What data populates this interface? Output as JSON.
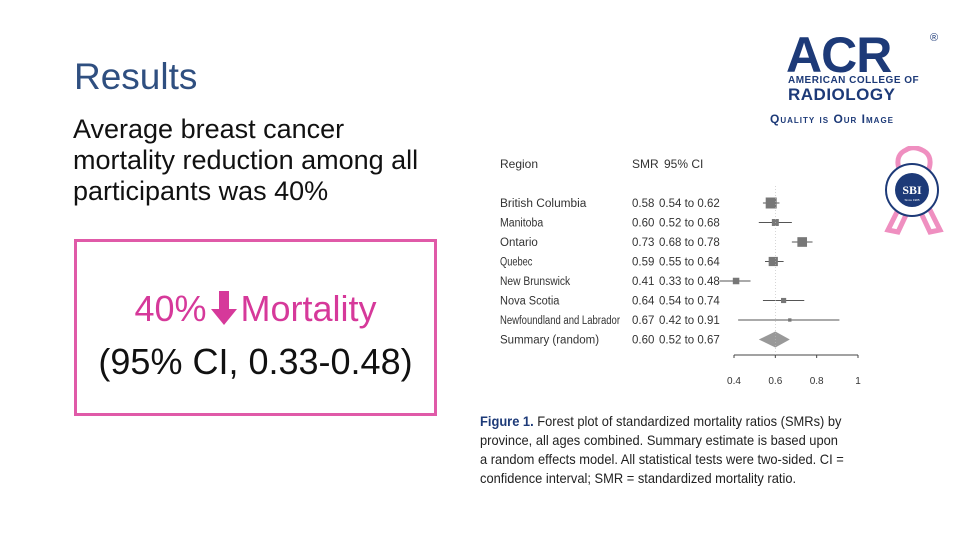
{
  "slide": {
    "title": "Results",
    "body": "Average breast cancer mortality reduction among all participants was 40%",
    "callout": {
      "percent": "40%",
      "label": "Mortality",
      "ci": "(95% CI, 0.33-0.48)",
      "arrow_icon": "down-arrow-icon",
      "accent_color": "#d6399a"
    }
  },
  "logos": {
    "acr": {
      "letters": "ACR",
      "line1": "AMERICAN COLLEGE OF",
      "line2": "RADIOLOGY",
      "tagline": "Quality is Our Image"
    },
    "sbi": {
      "text": "SBI",
      "ring_text": "SOCIETY OF BREAST IMAGING",
      "since": "Since 1985"
    }
  },
  "chart_data": {
    "type": "forest",
    "headers": {
      "region": "Region",
      "smr": "SMR",
      "ci": "95% CI"
    },
    "rows": [
      {
        "region": "British Columbia",
        "smr": 0.58,
        "smr_text": "0.58",
        "lo": 0.54,
        "hi": 0.62,
        "ci_text": "0.54 to 0.62",
        "weight": 1.0
      },
      {
        "region": "Manitoba",
        "smr": 0.6,
        "smr_text": "0.60",
        "lo": 0.52,
        "hi": 0.68,
        "ci_text": "0.52 to 0.68",
        "weight": 0.55
      },
      {
        "region": "Ontario",
        "smr": 0.73,
        "smr_text": "0.73",
        "lo": 0.68,
        "hi": 0.78,
        "ci_text": "0.68 to 0.78",
        "weight": 0.85
      },
      {
        "region": "Quebec",
        "smr": 0.59,
        "smr_text": "0.59",
        "lo": 0.55,
        "hi": 0.64,
        "ci_text": "0.55 to 0.64",
        "weight": 0.8
      },
      {
        "region": "New Brunswick",
        "smr": 0.41,
        "smr_text": "0.41",
        "lo": 0.33,
        "hi": 0.48,
        "ci_text": "0.33 to 0.48",
        "weight": 0.5
      },
      {
        "region": "Nova Scotia",
        "smr": 0.64,
        "smr_text": "0.64",
        "lo": 0.54,
        "hi": 0.74,
        "ci_text": "0.54 to 0.74",
        "weight": 0.35
      },
      {
        "region": "Newfoundland and Labrador",
        "smr": 0.67,
        "smr_text": "0.67",
        "lo": 0.42,
        "hi": 0.91,
        "ci_text": "0.42 to 0.91",
        "weight": 0.15
      }
    ],
    "summary": {
      "region": "Summary (random)",
      "smr": 0.6,
      "smr_text": "0.60",
      "lo": 0.52,
      "hi": 0.67,
      "ci_text": "0.52 to 0.67"
    },
    "xticks": [
      0.4,
      0.6,
      0.8,
      1
    ],
    "xtick_labels": [
      "0.4",
      "0.6",
      "0.8",
      "1"
    ],
    "xlim": [
      0.4,
      1.0
    ],
    "caption": {
      "label": "Figure 1.",
      "text": "Forest plot of standardized mortality ratios (SMRs) by province, all ages combined. Summary estimate is based upon a random effects model. All statistical tests were two-sided. CI = confidence interval; SMR = standardized mortality ratio."
    }
  }
}
